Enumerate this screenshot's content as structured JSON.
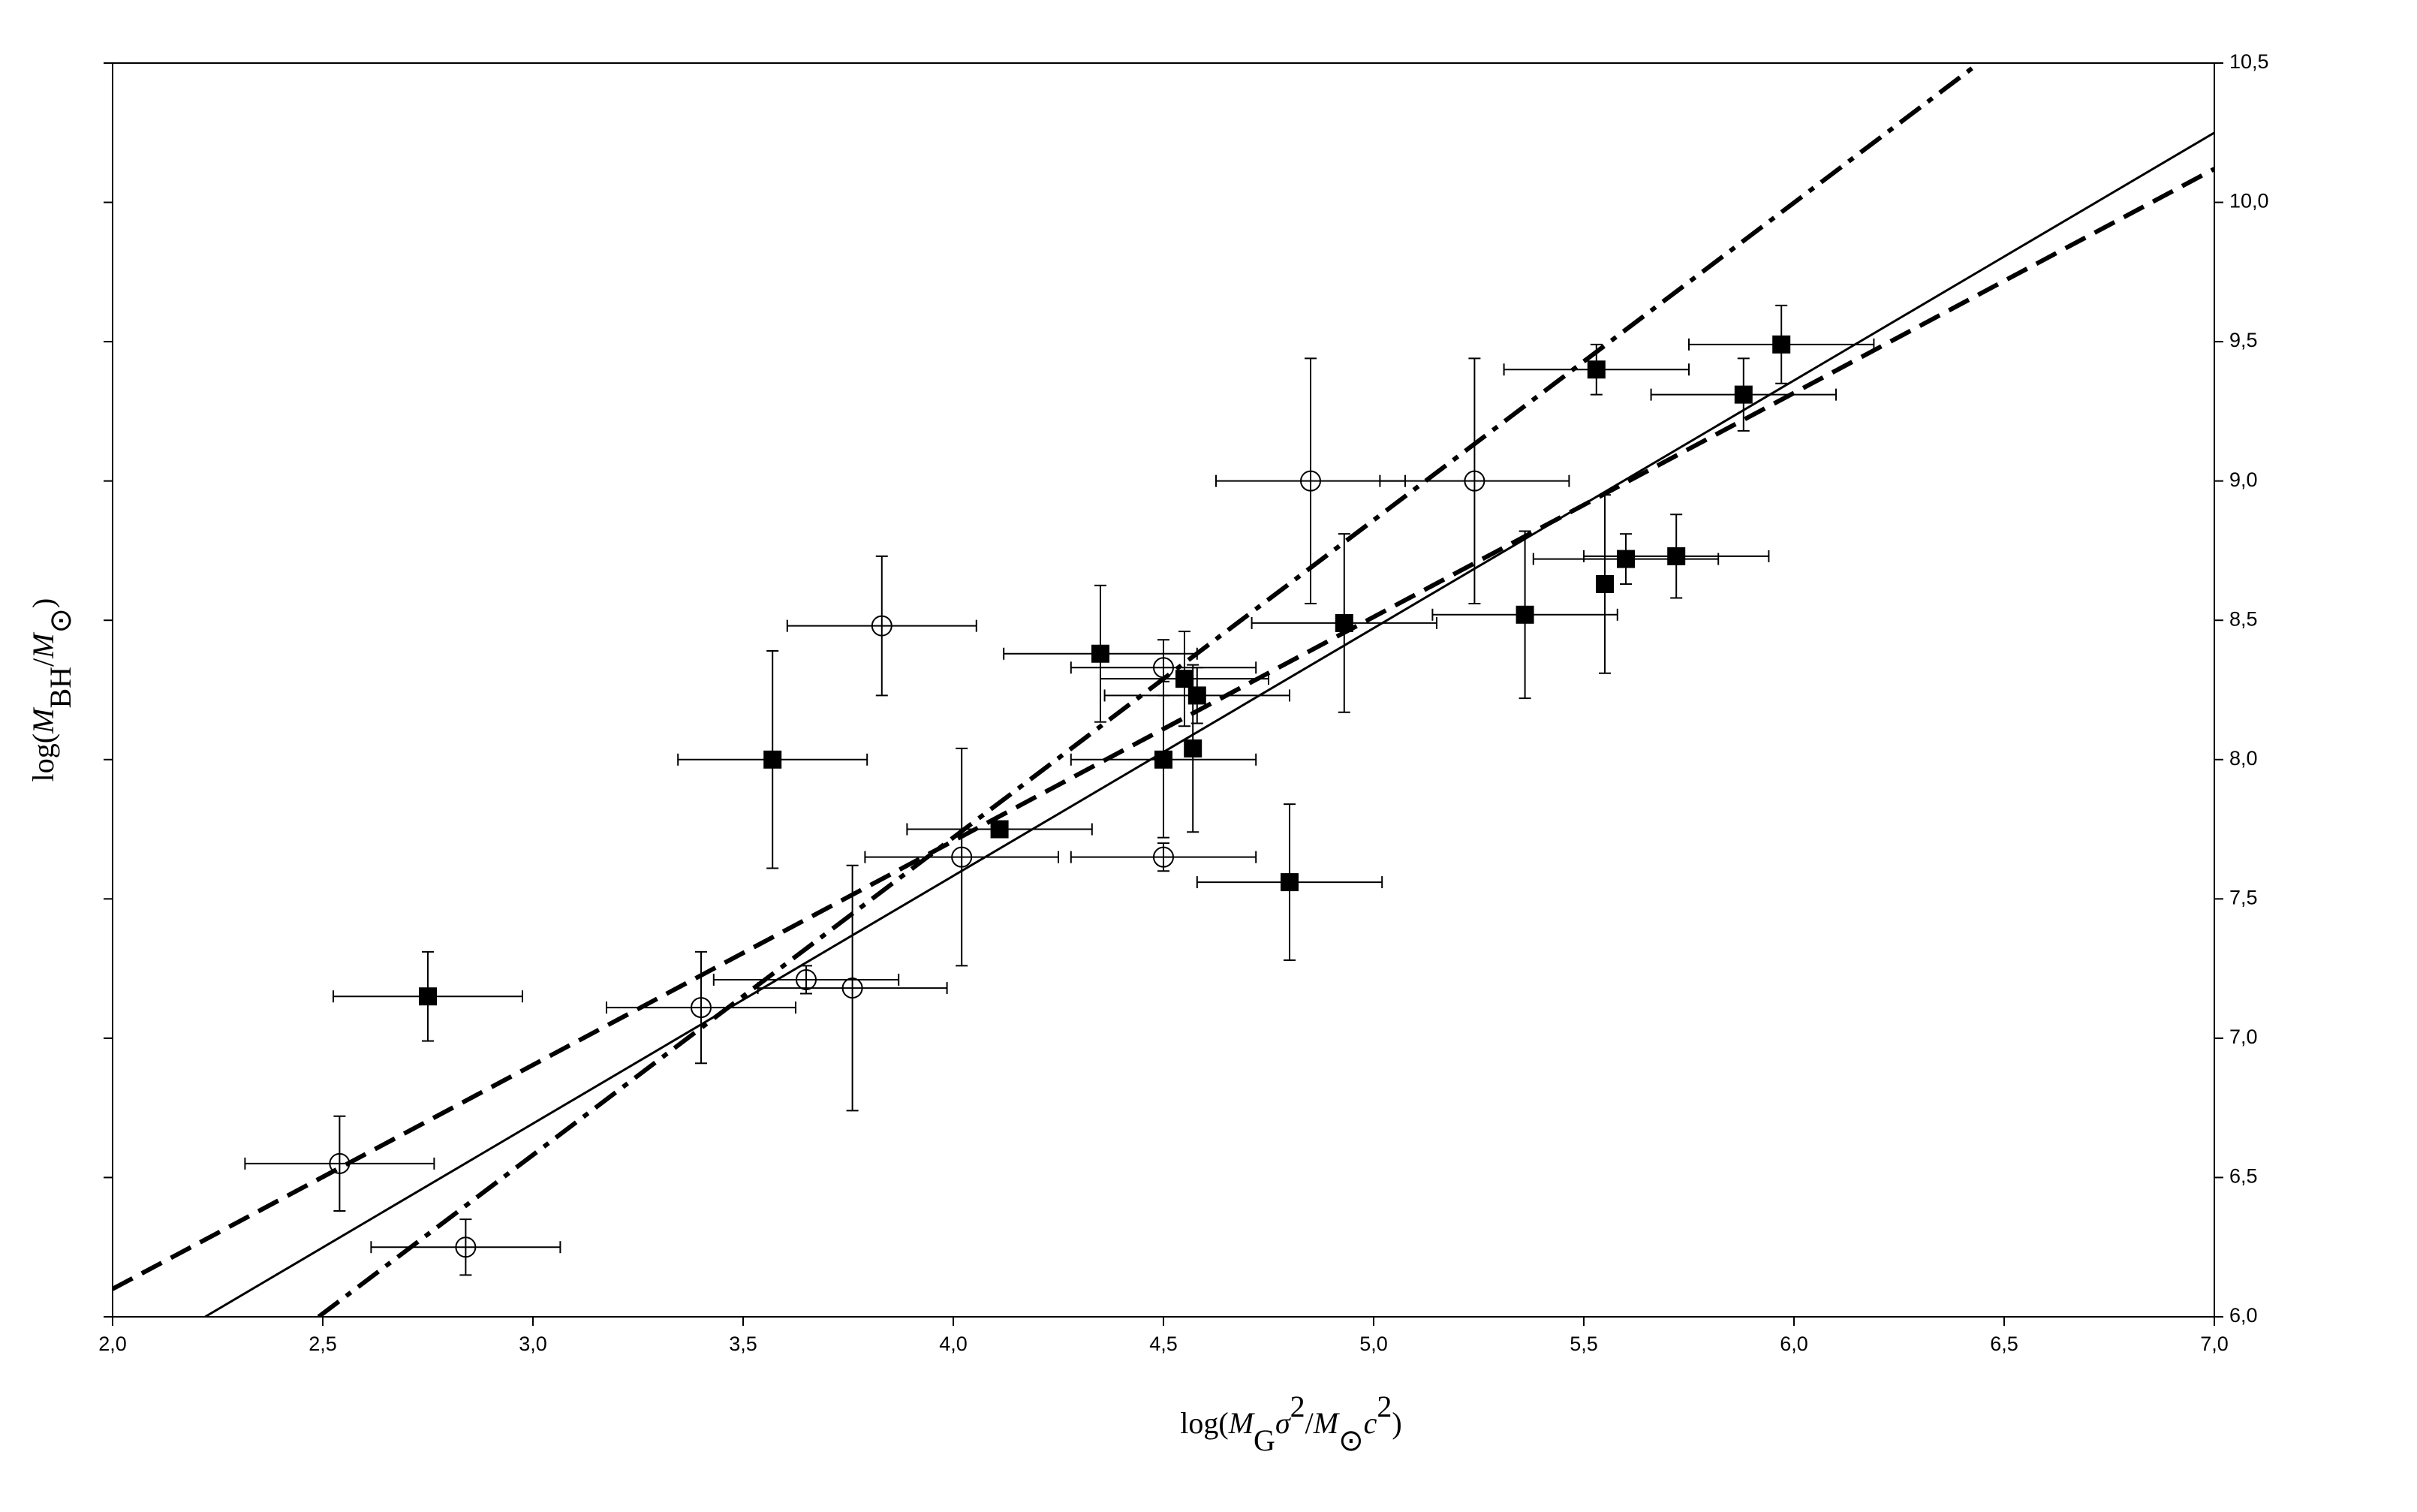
{
  "chart_data": {
    "type": "scatter",
    "xlabel_parts": [
      "log",
      "(",
      "M",
      "G",
      "σ",
      "2",
      "/",
      "M",
      "⊙",
      "c",
      "2",
      ")"
    ],
    "ylabel_parts": [
      "log",
      "(",
      "M",
      "BH",
      "/",
      "M",
      "⊙",
      ")"
    ],
    "xlim": [
      2.0,
      7.0
    ],
    "xticks": [
      {
        "value": 2.0,
        "label": "2,0"
      },
      {
        "value": 2.5,
        "label": "2,5"
      },
      {
        "value": 3.0,
        "label": "3,0"
      },
      {
        "value": 3.5,
        "label": "3,5"
      },
      {
        "value": 4.0,
        "label": "4,0"
      },
      {
        "value": 4.5,
        "label": "4,5"
      },
      {
        "value": 5.0,
        "label": "5,0"
      },
      {
        "value": 5.5,
        "label": "5,5"
      },
      {
        "value": 6.0,
        "label": "6,0"
      },
      {
        "value": 6.5,
        "label": "6,5"
      },
      {
        "value": 7.0,
        "label": "7,0"
      }
    ],
    "ylim": [
      6.0,
      10.5
    ],
    "yticks": [
      {
        "value": 6.0,
        "label": "6,0"
      },
      {
        "value": 6.5,
        "label": "6,5"
      },
      {
        "value": 7.0,
        "label": "7,0"
      },
      {
        "value": 7.5,
        "label": "7,5"
      },
      {
        "value": 8.0,
        "label": "8,0"
      },
      {
        "value": 8.5,
        "label": "8,5"
      },
      {
        "value": 9.0,
        "label": "9,0"
      },
      {
        "value": 9.5,
        "label": "9,5"
      },
      {
        "value": 10.0,
        "label": "10,0"
      },
      {
        "value": 10.5,
        "label": "10,5"
      }
    ],
    "grid": false,
    "series": [
      {
        "marker": "square",
        "color": "#000000",
        "x": [
          2.75,
          3.57,
          4.11,
          4.35,
          4.5,
          4.55,
          4.58,
          4.57,
          4.8,
          4.93,
          5.36,
          5.53,
          5.55,
          5.6,
          5.72,
          5.88,
          5.97
        ],
        "values": [
          7.15,
          8.0,
          7.75,
          8.38,
          8.0,
          8.29,
          8.23,
          8.04,
          7.56,
          8.49,
          8.52,
          9.4,
          8.63,
          8.72,
          8.73,
          9.31,
          9.49
        ],
        "xerr": [
          0.225,
          0.225,
          0.22,
          0.23,
          0.22,
          0.2,
          0.22,
          0.0,
          0.22,
          0.22,
          0.22,
          0.22,
          0.0,
          0.22,
          0.22,
          0.22,
          0.22
        ],
        "yerr": [
          0.16,
          0.39,
          0.0,
          0.245,
          0.28,
          0.17,
          0.1,
          0.3,
          0.28,
          0.32,
          0.3,
          0.09,
          0.32,
          0.09,
          0.15,
          0.13,
          0.14
        ]
      },
      {
        "marker": "circle",
        "color": "#000000",
        "x": [
          2.54,
          2.84,
          3.4,
          3.65,
          3.76,
          3.83,
          4.02,
          4.5,
          4.5,
          4.85,
          5.24
        ],
        "values": [
          6.55,
          6.25,
          7.11,
          7.21,
          7.18,
          8.48,
          7.65,
          8.33,
          7.65,
          9.0,
          9.0
        ],
        "xerr": [
          0.225,
          0.225,
          0.225,
          0.22,
          0.225,
          0.225,
          0.23,
          0.22,
          0.22,
          0.225,
          0.225
        ],
        "yerr": [
          0.17,
          0.1,
          0.2,
          0.05,
          0.44,
          0.25,
          0.39,
          0.1,
          0.05,
          0.44,
          0.44
        ]
      }
    ],
    "lines": [
      {
        "style": "solid",
        "color": "#000000",
        "x": [
          2.22,
          7.0
        ],
        "values": [
          6.0,
          10.25
        ]
      },
      {
        "style": "dashed",
        "color": "#000000",
        "x": [
          2.0,
          7.0
        ],
        "values": [
          6.1,
          10.12
        ]
      },
      {
        "style": "dashdot",
        "color": "#000000",
        "x": [
          2.49,
          6.44
        ],
        "values": [
          6.0,
          10.5
        ]
      }
    ]
  }
}
